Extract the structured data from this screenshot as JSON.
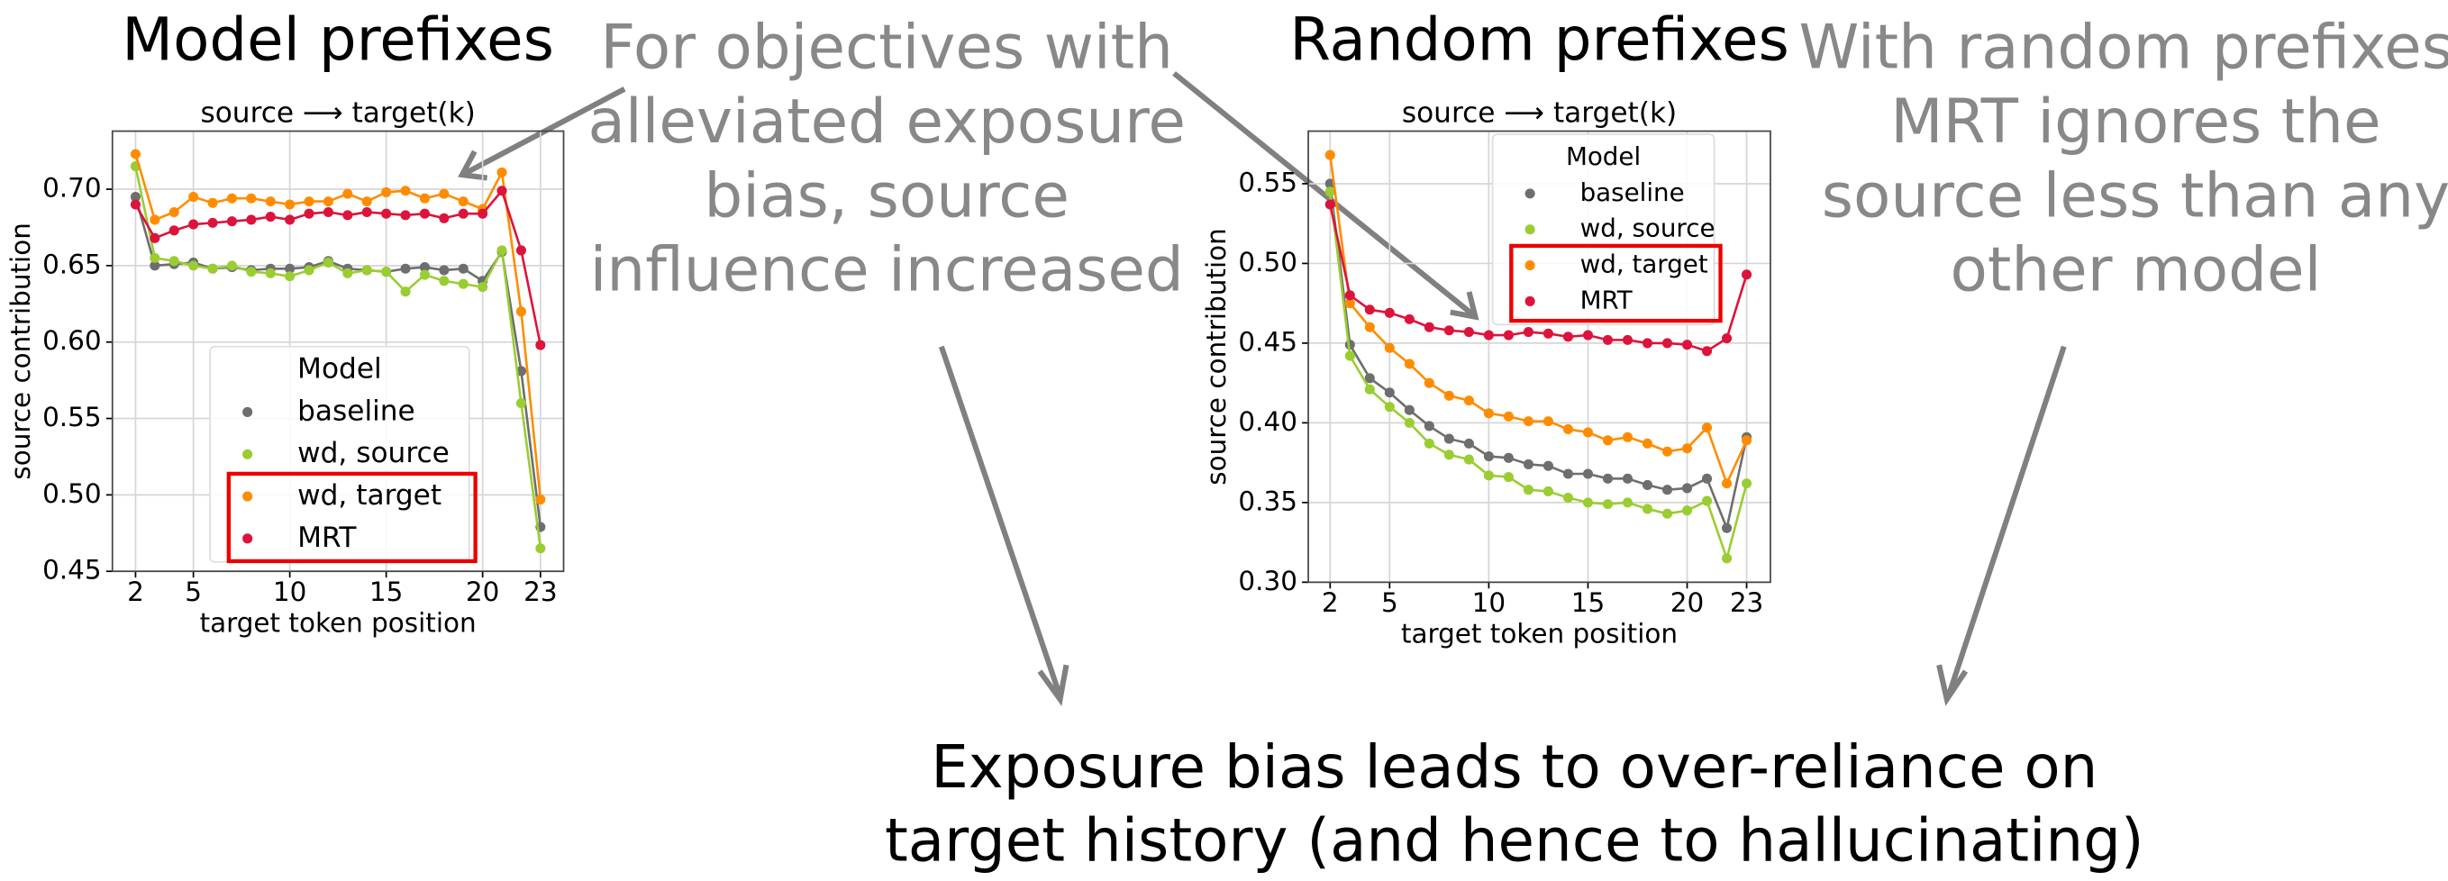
{
  "chart_data": [
    {
      "type": "line",
      "title": "Model prefixes",
      "subtitle": "source ⟶ target(k)",
      "annotation": [
        "For objectives with",
        "alleviated exposure",
        "bias, source",
        "influence increased"
      ],
      "x_label": "target token position",
      "y_label": "source contribution",
      "x": [
        2,
        3,
        4,
        5,
        6,
        7,
        8,
        9,
        10,
        11,
        12,
        13,
        14,
        15,
        16,
        17,
        18,
        19,
        20,
        21,
        22,
        23
      ],
      "xlim": [
        0.8,
        24.2
      ],
      "xticks": [
        2,
        5,
        10,
        15,
        20,
        23
      ],
      "ylim": [
        0.45,
        0.738
      ],
      "yticks": [
        {
          "value": 0.45,
          "label": "0.45"
        },
        {
          "value": 0.5,
          "label": "0.50"
        },
        {
          "value": 0.55,
          "label": "0.55"
        },
        {
          "value": 0.6,
          "label": "0.60"
        },
        {
          "value": 0.65,
          "label": "0.65"
        },
        {
          "value": 0.7,
          "label": "0.70"
        }
      ],
      "grid": true,
      "legend_title": "Model",
      "legend_position": "lower center",
      "highlight_series": [
        2,
        3
      ],
      "series": [
        {
          "name": "baseline",
          "color": "#6e6e6e",
          "values": [
            0.695,
            0.65,
            0.651,
            0.652,
            0.648,
            0.649,
            0.647,
            0.648,
            0.648,
            0.649,
            0.653,
            0.648,
            0.647,
            0.646,
            0.648,
            0.649,
            0.647,
            0.648,
            0.64,
            0.659,
            0.581,
            0.479
          ]
        },
        {
          "name": "wd, source",
          "color": "#9acd32",
          "values": [
            0.715,
            0.655,
            0.653,
            0.65,
            0.648,
            0.65,
            0.646,
            0.645,
            0.643,
            0.647,
            0.652,
            0.645,
            0.647,
            0.646,
            0.633,
            0.644,
            0.64,
            0.638,
            0.636,
            0.66,
            0.56,
            0.465
          ]
        },
        {
          "name": "wd, target",
          "color": "#ff8c00",
          "values": [
            0.723,
            0.68,
            0.685,
            0.695,
            0.691,
            0.694,
            0.694,
            0.692,
            0.69,
            0.692,
            0.692,
            0.697,
            0.692,
            0.698,
            0.699,
            0.694,
            0.697,
            0.692,
            0.687,
            0.711,
            0.62,
            0.497
          ]
        },
        {
          "name": "MRT",
          "color": "#dc143c",
          "values": [
            0.69,
            0.668,
            0.673,
            0.677,
            0.678,
            0.679,
            0.68,
            0.682,
            0.68,
            0.684,
            0.685,
            0.683,
            0.685,
            0.684,
            0.683,
            0.684,
            0.681,
            0.684,
            0.684,
            0.699,
            0.66,
            0.598
          ]
        }
      ]
    },
    {
      "type": "line",
      "title": "Random prefixes",
      "subtitle": "source ⟶ target(k)",
      "annotation": [
        "With random prefixes,",
        "MRT ignores the",
        "source less than any",
        "other model"
      ],
      "x_label": "target token position",
      "y_label": "source contribution",
      "x": [
        2,
        3,
        4,
        5,
        6,
        7,
        8,
        9,
        10,
        11,
        12,
        13,
        14,
        15,
        16,
        17,
        18,
        19,
        20,
        21,
        22,
        23
      ],
      "xlim": [
        0.9,
        24.2
      ],
      "xticks": [
        2,
        5,
        10,
        15,
        20,
        23
      ],
      "ylim": [
        0.3,
        0.583
      ],
      "yticks": [
        {
          "value": 0.3,
          "label": "0.30"
        },
        {
          "value": 0.35,
          "label": "0.35"
        },
        {
          "value": 0.4,
          "label": "0.40"
        },
        {
          "value": 0.45,
          "label": "0.45"
        },
        {
          "value": 0.5,
          "label": "0.50"
        },
        {
          "value": 0.55,
          "label": "0.55"
        }
      ],
      "grid": true,
      "legend_title": "Model",
      "legend_position": "upper right",
      "highlight_series": [
        2,
        3
      ],
      "series": [
        {
          "name": "baseline",
          "color": "#6e6e6e",
          "values": [
            0.55,
            0.449,
            0.428,
            0.419,
            0.408,
            0.398,
            0.39,
            0.387,
            0.379,
            0.378,
            0.374,
            0.373,
            0.368,
            0.368,
            0.365,
            0.365,
            0.361,
            0.358,
            0.359,
            0.365,
            0.334,
            0.391
          ]
        },
        {
          "name": "wd, source",
          "color": "#9acd32",
          "values": [
            0.545,
            0.442,
            0.421,
            0.41,
            0.4,
            0.387,
            0.38,
            0.377,
            0.367,
            0.366,
            0.358,
            0.357,
            0.353,
            0.35,
            0.349,
            0.35,
            0.346,
            0.343,
            0.345,
            0.351,
            0.315,
            0.362
          ]
        },
        {
          "name": "wd, target",
          "color": "#ff8c00",
          "values": [
            0.568,
            0.475,
            0.46,
            0.447,
            0.437,
            0.425,
            0.417,
            0.414,
            0.406,
            0.404,
            0.401,
            0.401,
            0.396,
            0.394,
            0.389,
            0.391,
            0.387,
            0.382,
            0.384,
            0.397,
            0.362,
            0.389
          ]
        },
        {
          "name": "MRT",
          "color": "#dc143c",
          "values": [
            0.537,
            0.48,
            0.471,
            0.469,
            0.465,
            0.46,
            0.458,
            0.457,
            0.455,
            0.455,
            0.457,
            0.456,
            0.454,
            0.455,
            0.452,
            0.452,
            0.45,
            0.45,
            0.449,
            0.445,
            0.453,
            0.493
          ]
        }
      ]
    }
  ],
  "conclusion": [
    "Exposure bias leads to over-reliance on",
    "target history (and hence to hallucinating)"
  ]
}
